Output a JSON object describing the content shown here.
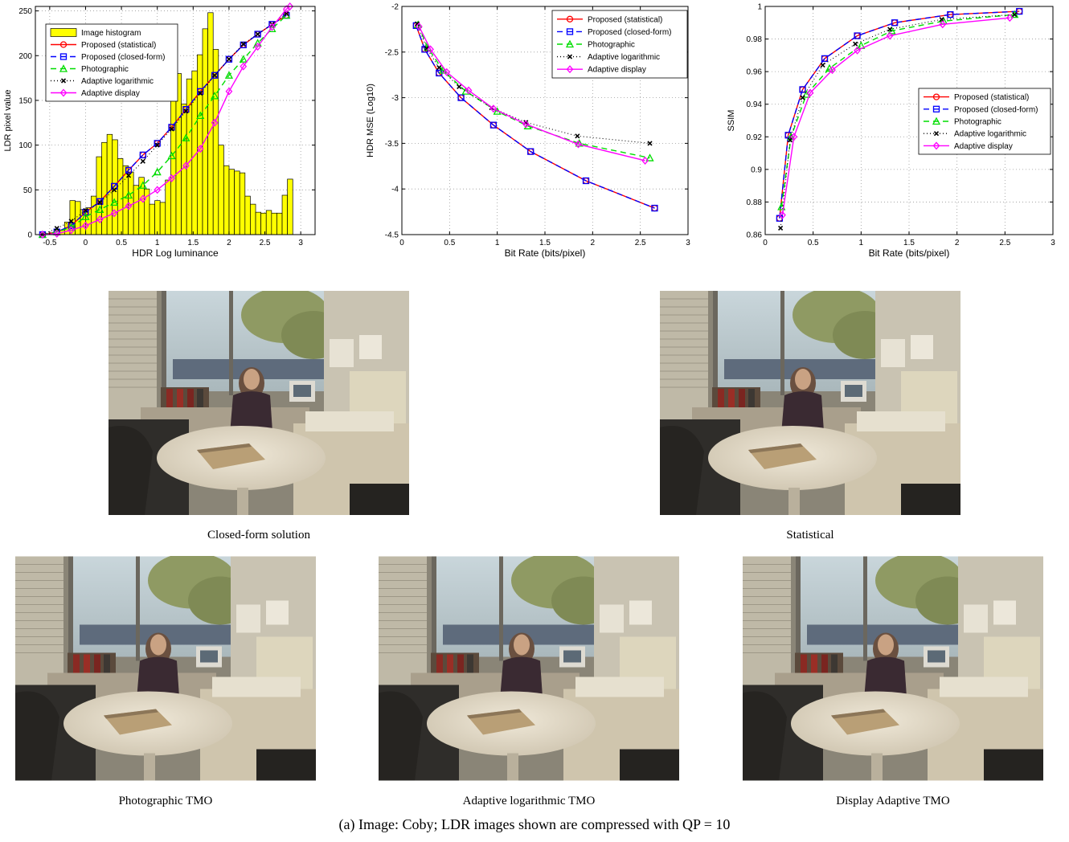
{
  "chart_data": [
    {
      "type": "line",
      "xlabel": "HDR Log luminance",
      "ylabel": "LDR pixel value",
      "xlim": [
        -0.7,
        3.2
      ],
      "ylim": [
        0,
        255
      ],
      "xticks": [
        -0.5,
        0,
        0.5,
        1,
        1.5,
        2,
        2.5,
        3
      ],
      "xtick_labels": [
        "-0.5",
        "0",
        "0.5",
        "1",
        "1.5",
        "2",
        "2.5",
        "3"
      ],
      "yticks": [
        0,
        50,
        100,
        150,
        200,
        250
      ],
      "ytick_labels": [
        "0",
        "50",
        "100",
        "150",
        "200",
        "250"
      ],
      "grid": true,
      "legend_position": "top-left",
      "histogram": {
        "name": "Image histogram",
        "color": "#ffff00",
        "bin_width": 0.074,
        "x": [
          -0.33,
          -0.256,
          -0.182,
          -0.108,
          -0.034,
          0.04,
          0.114,
          0.188,
          0.262,
          0.336,
          0.41,
          0.484,
          0.558,
          0.632,
          0.706,
          0.78,
          0.854,
          0.928,
          1.002,
          1.076,
          1.15,
          1.224,
          1.298,
          1.372,
          1.446,
          1.52,
          1.594,
          1.668,
          1.742,
          1.816,
          1.89,
          1.964,
          2.038,
          2.112,
          2.186,
          2.26,
          2.334,
          2.408,
          2.482,
          2.556,
          2.63,
          2.704,
          2.778,
          2.852
        ],
        "values": [
          5,
          14,
          38,
          37,
          28,
          30,
          43,
          87,
          103,
          112,
          106,
          85,
          77,
          70,
          55,
          64,
          51,
          34,
          38,
          36,
          61,
          183,
          180,
          146,
          174,
          183,
          201,
          230,
          248,
          207,
          100,
          77,
          73,
          71,
          69,
          43,
          34,
          25,
          24,
          27,
          24,
          24,
          44,
          62
        ]
      },
      "series": [
        {
          "name": "Proposed (statistical)",
          "color": "#ff0000",
          "dash": "",
          "marker": "circle",
          "x": [
            -0.6,
            -0.4,
            -0.2,
            0,
            0.2,
            0.4,
            0.6,
            0.8,
            1.0,
            1.2,
            1.4,
            1.6,
            1.8,
            2.0,
            2.2,
            2.4,
            2.6,
            2.8
          ],
          "y": [
            0,
            3,
            10,
            25,
            37,
            54,
            72,
            89,
            102,
            120,
            140,
            160,
            178,
            196,
            212,
            224,
            235,
            245
          ]
        },
        {
          "name": "Proposed (closed-form)",
          "color": "#0000ff",
          "dash": "7,5",
          "marker": "square",
          "x": [
            -0.6,
            -0.4,
            -0.2,
            0,
            0.2,
            0.4,
            0.6,
            0.8,
            1.0,
            1.2,
            1.4,
            1.6,
            1.8,
            2.0,
            2.2,
            2.4,
            2.6,
            2.8
          ],
          "y": [
            0,
            3,
            10,
            25,
            37,
            54,
            72,
            89,
            102,
            120,
            140,
            160,
            178,
            196,
            212,
            224,
            235,
            245
          ]
        },
        {
          "name": "Photographic",
          "color": "#00dd00",
          "dash": "7,5",
          "marker": "triangle",
          "x": [
            -0.6,
            -0.4,
            -0.2,
            0,
            0.2,
            0.4,
            0.6,
            0.8,
            1.0,
            1.2,
            1.4,
            1.6,
            1.8,
            2.0,
            2.2,
            2.4,
            2.6,
            2.8
          ],
          "y": [
            0,
            3,
            8,
            20,
            28,
            36,
            44,
            55,
            70,
            88,
            108,
            133,
            155,
            178,
            196,
            214,
            230,
            245
          ]
        },
        {
          "name": "Adaptive logarithmic",
          "color": "#000000",
          "dash": "1,3",
          "marker": "x",
          "x": [
            -0.6,
            -0.4,
            -0.2,
            0,
            0.2,
            0.4,
            0.6,
            0.8,
            1.0,
            1.2,
            1.4,
            1.6,
            1.8,
            2.0,
            2.2,
            2.4,
            2.6,
            2.8
          ],
          "y": [
            0,
            7,
            15,
            27,
            36,
            50,
            66,
            82,
            100,
            118,
            138,
            158,
            178,
            196,
            213,
            224,
            235,
            247
          ]
        },
        {
          "name": "Adaptive display",
          "color": "#ff00ff",
          "dash": "",
          "marker": "diamond",
          "x": [
            -0.6,
            -0.4,
            -0.2,
            0,
            0.2,
            0.4,
            0.6,
            0.8,
            1.0,
            1.2,
            1.4,
            1.6,
            1.8,
            2.0,
            2.2,
            2.4,
            2.6,
            2.8,
            2.85
          ],
          "y": [
            0,
            1,
            5,
            10,
            17,
            24,
            32,
            40,
            50,
            63,
            77,
            96,
            125,
            160,
            188,
            210,
            232,
            252,
            255
          ]
        }
      ]
    },
    {
      "type": "line",
      "xlabel": "Bit Rate (bits/pixel)",
      "ylabel": "HDR MSE (Log10)",
      "xlim": [
        0,
        3
      ],
      "ylim": [
        -4.5,
        -2
      ],
      "xticks": [
        0,
        0.5,
        1,
        1.5,
        2,
        2.5,
        3
      ],
      "xtick_labels": [
        "0",
        "0.5",
        "1",
        "1.5",
        "2",
        "2.5",
        "3"
      ],
      "yticks": [
        -4.5,
        -4,
        -3.5,
        -3,
        -2.5,
        -2
      ],
      "ytick_labels": [
        "-4.5",
        "-4",
        "-3.5",
        "-3",
        "-2.5",
        "-2"
      ],
      "grid": true,
      "legend_position": "top-right",
      "series": [
        {
          "name": "Proposed (statistical)",
          "color": "#ff0000",
          "dash": "",
          "marker": "circle",
          "x": [
            0.15,
            0.24,
            0.39,
            0.62,
            0.96,
            1.35,
            1.93,
            2.65
          ],
          "y": [
            -2.21,
            -2.47,
            -2.73,
            -3.0,
            -3.3,
            -3.59,
            -3.91,
            -4.21
          ]
        },
        {
          "name": "Proposed (closed-form)",
          "color": "#0000ff",
          "dash": "7,5",
          "marker": "square",
          "x": [
            0.15,
            0.24,
            0.39,
            0.62,
            0.96,
            1.35,
            1.93,
            2.65
          ],
          "y": [
            -2.21,
            -2.47,
            -2.73,
            -3.0,
            -3.3,
            -3.59,
            -3.91,
            -4.21
          ]
        },
        {
          "name": "Photographic",
          "color": "#00dd00",
          "dash": "7,5",
          "marker": "triangle",
          "x": [
            0.17,
            0.27,
            0.43,
            0.67,
            1.0,
            1.32,
            1.86,
            2.6
          ],
          "y": [
            -2.2,
            -2.45,
            -2.7,
            -2.93,
            -3.15,
            -3.31,
            -3.5,
            -3.66
          ]
        },
        {
          "name": "Adaptive logarithmic",
          "color": "#000000",
          "dash": "1,3",
          "marker": "x",
          "x": [
            0.16,
            0.26,
            0.39,
            0.6,
            0.94,
            1.3,
            1.84,
            2.6
          ],
          "y": [
            -2.19,
            -2.46,
            -2.67,
            -2.88,
            -3.11,
            -3.27,
            -3.42,
            -3.5
          ]
        },
        {
          "name": "Adaptive display",
          "color": "#ff00ff",
          "dash": "",
          "marker": "diamond",
          "x": [
            0.18,
            0.3,
            0.47,
            0.7,
            0.96,
            1.3,
            1.85,
            2.55
          ],
          "y": [
            -2.22,
            -2.47,
            -2.72,
            -2.92,
            -3.12,
            -3.29,
            -3.51,
            -3.69
          ]
        }
      ]
    },
    {
      "type": "line",
      "xlabel": "Bit Rate (bits/pixel)",
      "ylabel": "SSIM",
      "xlim": [
        0,
        3
      ],
      "ylim": [
        0.86,
        1.0
      ],
      "xticks": [
        0,
        0.5,
        1,
        1.5,
        2,
        2.5,
        3
      ],
      "xtick_labels": [
        "0",
        "0.5",
        "1",
        "1.5",
        "2",
        "2.5",
        "3"
      ],
      "yticks": [
        0.86,
        0.88,
        0.9,
        0.92,
        0.94,
        0.96,
        0.98,
        1.0
      ],
      "ytick_labels": [
        "0.86",
        "0.88",
        "0.9",
        "0.92",
        "0.94",
        "0.96",
        "0.98",
        "1"
      ],
      "grid": true,
      "legend_position": "center-right",
      "series": [
        {
          "name": "Proposed (statistical)",
          "color": "#ff0000",
          "dash": "",
          "marker": "circle",
          "x": [
            0.15,
            0.24,
            0.39,
            0.62,
            0.96,
            1.35,
            1.93,
            2.65
          ],
          "y": [
            0.87,
            0.921,
            0.949,
            0.968,
            0.982,
            0.99,
            0.995,
            0.997
          ]
        },
        {
          "name": "Proposed (closed-form)",
          "color": "#0000ff",
          "dash": "7,5",
          "marker": "square",
          "x": [
            0.15,
            0.24,
            0.39,
            0.62,
            0.96,
            1.35,
            1.93,
            2.65
          ],
          "y": [
            0.87,
            0.921,
            0.949,
            0.968,
            0.982,
            0.99,
            0.995,
            0.997
          ]
        },
        {
          "name": "Photographic",
          "color": "#00dd00",
          "dash": "7,5",
          "marker": "triangle",
          "x": [
            0.17,
            0.27,
            0.43,
            0.67,
            1.0,
            1.32,
            1.86,
            2.6
          ],
          "y": [
            0.877,
            0.92,
            0.946,
            0.962,
            0.976,
            0.985,
            0.991,
            0.995
          ]
        },
        {
          "name": "Adaptive logarithmic",
          "color": "#000000",
          "dash": "1,3",
          "marker": "x",
          "x": [
            0.16,
            0.26,
            0.39,
            0.6,
            0.94,
            1.3,
            1.84,
            2.6
          ],
          "y": [
            0.864,
            0.918,
            0.944,
            0.964,
            0.977,
            0.986,
            0.992,
            0.995
          ]
        },
        {
          "name": "Adaptive display",
          "color": "#ff00ff",
          "dash": "",
          "marker": "diamond",
          "x": [
            0.18,
            0.3,
            0.47,
            0.7,
            0.96,
            1.3,
            1.85,
            2.55
          ],
          "y": [
            0.872,
            0.92,
            0.947,
            0.961,
            0.973,
            0.982,
            0.989,
            0.993
          ]
        }
      ]
    }
  ],
  "photos": {
    "closed_form_caption": "Closed-form solution",
    "statistical_caption": "Statistical",
    "photographic_caption": "Photographic TMO",
    "adaptive_log_caption": "Adaptive logarithmic TMO",
    "display_adaptive_caption": "Display Adaptive TMO"
  },
  "figure_caption": "(a) Image: Coby; LDR images shown are compressed with QP = 10"
}
